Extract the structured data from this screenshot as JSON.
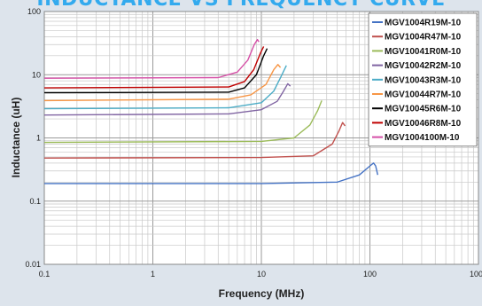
{
  "header": {
    "title": "INDUCTANCE VS FREQUENCY CURVE"
  },
  "chart_data": {
    "type": "line",
    "title": "INDUCTANCE VS FREQUENCY CURVE",
    "xlabel": "Frequency (MHz)",
    "ylabel": "Inductance (uH)",
    "xscale": "log",
    "yscale": "log",
    "xlim": [
      0.1,
      1000
    ],
    "ylim": [
      0.01,
      100
    ],
    "xticks": [
      "0.1",
      "1",
      "10",
      "100",
      "1000"
    ],
    "yticks": [
      "0.01",
      "0.1",
      "1",
      "10",
      "100"
    ],
    "grid": true,
    "legend_position": "top-right",
    "series": [
      {
        "name": "MGV1004R19M-10",
        "color": "#4472c4",
        "points": [
          [
            0.1,
            0.19
          ],
          [
            10,
            0.19
          ],
          [
            50,
            0.2
          ],
          [
            80,
            0.26
          ],
          [
            100,
            0.36
          ],
          [
            108,
            0.4
          ],
          [
            113,
            0.36
          ],
          [
            118,
            0.26
          ]
        ]
      },
      {
        "name": "MGV1004R47M-10",
        "color": "#c0504d",
        "points": [
          [
            0.1,
            0.48
          ],
          [
            10,
            0.49
          ],
          [
            30,
            0.52
          ],
          [
            45,
            0.8
          ],
          [
            52,
            1.3
          ],
          [
            56,
            1.75
          ],
          [
            59,
            1.55
          ]
        ]
      },
      {
        "name": "MGV10041R0M-10",
        "color": "#9bbb59",
        "points": [
          [
            0.1,
            0.85
          ],
          [
            10,
            0.88
          ],
          [
            20,
            1.0
          ],
          [
            28,
            1.6
          ],
          [
            33,
            2.7
          ],
          [
            36,
            3.9
          ]
        ]
      },
      {
        "name": "MGV10042R2M-10",
        "color": "#8064a2",
        "points": [
          [
            0.1,
            2.3
          ],
          [
            5,
            2.4
          ],
          [
            10,
            2.8
          ],
          [
            14,
            3.8
          ],
          [
            16,
            5.5
          ],
          [
            17.5,
            7.2
          ],
          [
            18.5,
            6.6
          ]
        ]
      },
      {
        "name": "MGV10043R3M-10",
        "color": "#4bacc6",
        "points": [
          [
            0.1,
            2.9
          ],
          [
            5,
            3.0
          ],
          [
            10,
            3.6
          ],
          [
            13,
            5.5
          ],
          [
            15,
            9.0
          ],
          [
            17,
            14
          ]
        ]
      },
      {
        "name": "MGV10044R7M-10",
        "color": "#f79646",
        "points": [
          [
            0.1,
            3.9
          ],
          [
            5,
            4.1
          ],
          [
            8,
            4.8
          ],
          [
            11,
            7.0
          ],
          [
            13,
            12
          ],
          [
            14.2,
            14.5
          ],
          [
            15,
            13
          ]
        ]
      },
      {
        "name": "MGV10045R6M-10",
        "color": "#000000",
        "points": [
          [
            0.1,
            5.2
          ],
          [
            5,
            5.3
          ],
          [
            7,
            6.2
          ],
          [
            9,
            10
          ],
          [
            10.5,
            20
          ],
          [
            11.3,
            26
          ]
        ]
      },
      {
        "name": "MGV10046R8M-10",
        "color": "#c00000",
        "points": [
          [
            0.1,
            6.2
          ],
          [
            5,
            6.4
          ],
          [
            7,
            7.8
          ],
          [
            8.5,
            12
          ],
          [
            9.8,
            22
          ],
          [
            10.5,
            28
          ]
        ]
      },
      {
        "name": "MGV1004100M-10",
        "color": "#d54fa6",
        "points": [
          [
            0.1,
            8.8
          ],
          [
            4,
            9.0
          ],
          [
            6,
            11
          ],
          [
            7.5,
            17
          ],
          [
            8.6,
            30
          ],
          [
            9.2,
            36
          ],
          [
            9.5,
            33
          ]
        ]
      }
    ]
  }
}
